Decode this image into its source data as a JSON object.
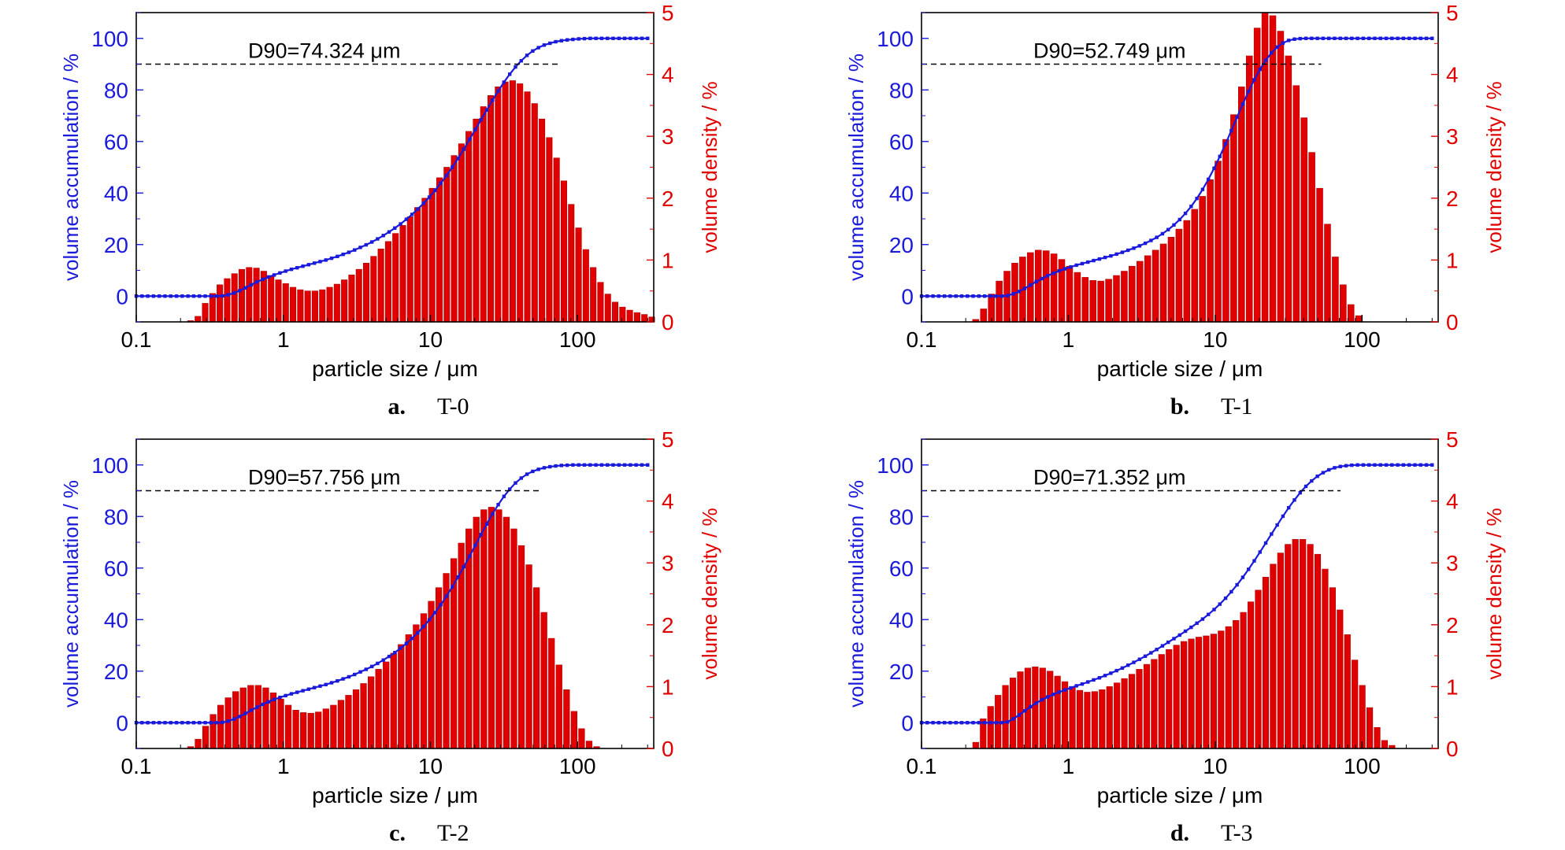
{
  "colors": {
    "accumulation": "#1a1adb",
    "density": "#e00000",
    "density_edge": "#b00000",
    "axis": "#000000",
    "reference_line": "#000000"
  },
  "chart_data": [
    {
      "type": "bar",
      "caption_letter": "a.",
      "caption_name": "T-0",
      "annotation": "D90=74.324 μm",
      "xlabel": "particle size / μm",
      "ylabel_left": "volume accumulation / %",
      "ylabel_right": "volume density / %",
      "x_scale": "log",
      "xlim": [
        0.1,
        330
      ],
      "ylim_left": [
        -10,
        110
      ],
      "ylim_right": [
        0,
        5
      ],
      "xticks": [
        {
          "v": 0.1,
          "label": "0.1"
        },
        {
          "v": 1,
          "label": "1"
        },
        {
          "v": 10,
          "label": "10"
        },
        {
          "v": 100,
          "label": "100"
        }
      ],
      "yticks_left": [
        {
          "v": 0,
          "label": "0"
        },
        {
          "v": 20,
          "label": "20"
        },
        {
          "v": 40,
          "label": "40"
        },
        {
          "v": 60,
          "label": "60"
        },
        {
          "v": 80,
          "label": "80"
        },
        {
          "v": 100,
          "label": "100"
        }
      ],
      "yticks_right": [
        {
          "v": 0,
          "label": "0"
        },
        {
          "v": 1,
          "label": "1"
        },
        {
          "v": 2,
          "label": "2"
        },
        {
          "v": 3,
          "label": "3"
        },
        {
          "v": 4,
          "label": "4"
        },
        {
          "v": 5,
          "label": "5"
        }
      ],
      "reference_line": {
        "y": 90,
        "x_start": 0.1,
        "x_end": 74.324
      },
      "density": {
        "x_min": 0.234,
        "x_max": 320,
        "k": 64,
        "values": [
          0.02,
          0.09,
          0.3,
          0.46,
          0.6,
          0.7,
          0.78,
          0.85,
          0.88,
          0.87,
          0.82,
          0.75,
          0.68,
          0.62,
          0.56,
          0.52,
          0.5,
          0.5,
          0.52,
          0.56,
          0.61,
          0.68,
          0.76,
          0.85,
          0.95,
          1.06,
          1.18,
          1.3,
          1.43,
          1.56,
          1.7,
          1.85,
          2.0,
          2.16,
          2.33,
          2.5,
          2.69,
          2.88,
          3.08,
          3.28,
          3.48,
          3.66,
          3.8,
          3.88,
          3.9,
          3.85,
          3.72,
          3.53,
          3.28,
          2.98,
          2.65,
          2.28,
          1.9,
          1.52,
          1.17,
          0.88,
          0.64,
          0.45,
          0.32,
          0.24,
          0.19,
          0.15,
          0.12,
          0.08
        ]
      },
      "accumulation": {
        "x_start": 0.1,
        "x_end": 300,
        "k": 90,
        "values": [
          0,
          0,
          0,
          0,
          0,
          0,
          0,
          0,
          0,
          0,
          0,
          0,
          0,
          0,
          0,
          0.1,
          0.5,
          1.2,
          2.1,
          3.2,
          4.4,
          5.5,
          6.5,
          7.4,
          8.2,
          9.0,
          9.7,
          10.4,
          11.0,
          11.6,
          12.2,
          12.8,
          13.4,
          14.0,
          14.7,
          15.4,
          16.2,
          17.0,
          17.9,
          18.9,
          19.9,
          21.0,
          22.2,
          23.5,
          24.9,
          26.4,
          28.0,
          29.8,
          31.7,
          33.8,
          36.0,
          38.4,
          41.0,
          43.8,
          46.8,
          50.0,
          53.4,
          57.0,
          60.8,
          64.6,
          68.4,
          72.2,
          76.0,
          79.6,
          83.0,
          86.1,
          88.9,
          91.3,
          93.4,
          95.1,
          96.4,
          97.4,
          98.1,
          98.7,
          99.1,
          99.4,
          99.6,
          99.8,
          99.9,
          100,
          100,
          100,
          100,
          100,
          100,
          100,
          100,
          100,
          100,
          100
        ]
      }
    },
    {
      "type": "bar",
      "caption_letter": "b.",
      "caption_name": "T-1",
      "annotation": "D90=52.749 μm",
      "xlabel": "particle size / μm",
      "ylabel_left": "volume accumulation / %",
      "ylabel_right": "volume density / %",
      "x_scale": "log",
      "xlim": [
        0.1,
        330
      ],
      "ylim_left": [
        -10,
        110
      ],
      "ylim_right": [
        0,
        5
      ],
      "xticks": [
        {
          "v": 0.1,
          "label": "0.1"
        },
        {
          "v": 1,
          "label": "1"
        },
        {
          "v": 10,
          "label": "10"
        },
        {
          "v": 100,
          "label": "100"
        }
      ],
      "yticks_left": [
        {
          "v": 0,
          "label": "0"
        },
        {
          "v": 20,
          "label": "20"
        },
        {
          "v": 40,
          "label": "40"
        },
        {
          "v": 60,
          "label": "60"
        },
        {
          "v": 80,
          "label": "80"
        },
        {
          "v": 100,
          "label": "100"
        }
      ],
      "yticks_right": [
        {
          "v": 0,
          "label": "0"
        },
        {
          "v": 1,
          "label": "1"
        },
        {
          "v": 2,
          "label": "2"
        },
        {
          "v": 3,
          "label": "3"
        },
        {
          "v": 4,
          "label": "4"
        },
        {
          "v": 5,
          "label": "5"
        }
      ],
      "reference_line": {
        "y": 90,
        "x_start": 0.1,
        "x_end": 52.749
      },
      "density": {
        "x_min": 0.234,
        "x_max": 95,
        "k": 50,
        "values": [
          0.04,
          0.21,
          0.45,
          0.66,
          0.82,
          0.95,
          1.05,
          1.12,
          1.16,
          1.15,
          1.1,
          1.01,
          0.9,
          0.8,
          0.72,
          0.67,
          0.66,
          0.69,
          0.75,
          0.82,
          0.9,
          0.98,
          1.07,
          1.16,
          1.26,
          1.37,
          1.5,
          1.64,
          1.82,
          2.03,
          2.3,
          2.6,
          2.95,
          3.35,
          3.8,
          4.3,
          4.75,
          5.0,
          4.95,
          4.7,
          4.3,
          3.82,
          3.3,
          2.74,
          2.16,
          1.58,
          1.05,
          0.6,
          0.28,
          0.1
        ]
      },
      "accumulation": {
        "x_start": 0.1,
        "x_end": 300,
        "k": 90,
        "values": [
          0,
          0,
          0,
          0,
          0,
          0,
          0,
          0,
          0,
          0,
          0,
          0,
          0,
          0,
          0,
          0.2,
          0.9,
          1.8,
          3.0,
          4.3,
          5.6,
          6.8,
          7.9,
          8.9,
          9.8,
          10.6,
          11.3,
          12.0,
          12.6,
          13.2,
          13.8,
          14.4,
          15.0,
          15.6,
          16.3,
          17.0,
          17.8,
          18.6,
          19.5,
          20.5,
          21.6,
          22.8,
          24.2,
          25.8,
          27.6,
          29.7,
          32.1,
          34.8,
          37.9,
          41.4,
          45.3,
          49.6,
          54.2,
          59.1,
          64.2,
          69.4,
          74.5,
          79.4,
          83.9,
          88.0,
          91.5,
          94.4,
          96.6,
          98.2,
          99.2,
          99.7,
          99.9,
          100,
          100,
          100,
          100,
          100,
          100,
          100,
          100,
          100,
          100,
          100,
          100,
          100,
          100,
          100,
          100,
          100,
          100,
          100,
          100,
          100,
          100,
          100
        ]
      }
    },
    {
      "type": "bar",
      "caption_letter": "c.",
      "caption_name": "T-2",
      "annotation": "D90=57.756 μm",
      "xlabel": "particle size / μm",
      "ylabel_left": "volume accumulation / %",
      "ylabel_right": "volume density / %",
      "x_scale": "log",
      "xlim": [
        0.1,
        330
      ],
      "ylim_left": [
        -10,
        110
      ],
      "ylim_right": [
        0,
        5
      ],
      "xticks": [
        {
          "v": 0.1,
          "label": "0.1"
        },
        {
          "v": 1,
          "label": "1"
        },
        {
          "v": 10,
          "label": "10"
        },
        {
          "v": 100,
          "label": "100"
        }
      ],
      "yticks_left": [
        {
          "v": 0,
          "label": "0"
        },
        {
          "v": 20,
          "label": "20"
        },
        {
          "v": 40,
          "label": "40"
        },
        {
          "v": 60,
          "label": "60"
        },
        {
          "v": 80,
          "label": "80"
        },
        {
          "v": 100,
          "label": "100"
        }
      ],
      "yticks_right": [
        {
          "v": 0,
          "label": "0"
        },
        {
          "v": 1,
          "label": "1"
        },
        {
          "v": 2,
          "label": "2"
        },
        {
          "v": 3,
          "label": "3"
        },
        {
          "v": 4,
          "label": "4"
        },
        {
          "v": 5,
          "label": "5"
        }
      ],
      "reference_line": {
        "y": 90,
        "x_start": 0.1,
        "x_end": 57.756
      },
      "density": {
        "x_min": 0.234,
        "x_max": 135,
        "k": 55,
        "values": [
          0.03,
          0.15,
          0.36,
          0.55,
          0.7,
          0.82,
          0.92,
          0.98,
          1.02,
          1.02,
          0.98,
          0.9,
          0.8,
          0.7,
          0.62,
          0.58,
          0.57,
          0.59,
          0.64,
          0.7,
          0.78,
          0.86,
          0.95,
          1.05,
          1.16,
          1.28,
          1.4,
          1.54,
          1.68,
          1.84,
          2.0,
          2.18,
          2.38,
          2.6,
          2.83,
          3.07,
          3.32,
          3.55,
          3.74,
          3.86,
          3.9,
          3.86,
          3.74,
          3.55,
          3.28,
          2.97,
          2.6,
          2.2,
          1.78,
          1.35,
          0.95,
          0.6,
          0.32,
          0.12,
          0.03
        ]
      },
      "accumulation": {
        "x_start": 0.1,
        "x_end": 300,
        "k": 90,
        "values": [
          0,
          0,
          0,
          0,
          0,
          0,
          0,
          0,
          0,
          0,
          0,
          0,
          0,
          0,
          0,
          0.1,
          0.6,
          1.4,
          2.4,
          3.6,
          4.8,
          6.0,
          7.1,
          8.1,
          9.0,
          9.8,
          10.5,
          11.2,
          11.8,
          12.4,
          13.0,
          13.6,
          14.2,
          14.8,
          15.5,
          16.2,
          17.0,
          17.8,
          18.7,
          19.7,
          20.7,
          21.8,
          23.0,
          24.3,
          25.7,
          27.2,
          28.9,
          30.7,
          32.7,
          34.9,
          37.3,
          39.9,
          42.7,
          45.8,
          49.1,
          52.7,
          56.5,
          60.5,
          64.6,
          68.8,
          73.0,
          77.1,
          81.0,
          84.6,
          87.8,
          90.6,
          93.0,
          94.9,
          96.4,
          97.5,
          98.3,
          98.9,
          99.3,
          99.6,
          99.8,
          99.9,
          100,
          100,
          100,
          100,
          100,
          100,
          100,
          100,
          100,
          100,
          100,
          100,
          100,
          100
        ]
      }
    },
    {
      "type": "bar",
      "caption_letter": "d.",
      "caption_name": "T-3",
      "annotation": "D90=71.352 μm",
      "xlabel": "particle size / μm",
      "ylabel_left": "volume accumulation / %",
      "ylabel_right": "volume density / %",
      "x_scale": "log",
      "xlim": [
        0.1,
        330
      ],
      "ylim_left": [
        -10,
        110
      ],
      "ylim_right": [
        0,
        5
      ],
      "xticks": [
        {
          "v": 0.1,
          "label": "0.1"
        },
        {
          "v": 1,
          "label": "1"
        },
        {
          "v": 10,
          "label": "10"
        },
        {
          "v": 100,
          "label": "100"
        }
      ],
      "yticks_left": [
        {
          "v": 0,
          "label": "0"
        },
        {
          "v": 20,
          "label": "20"
        },
        {
          "v": 40,
          "label": "40"
        },
        {
          "v": 60,
          "label": "60"
        },
        {
          "v": 80,
          "label": "80"
        },
        {
          "v": 100,
          "label": "100"
        }
      ],
      "yticks_right": [
        {
          "v": 0,
          "label": "0"
        },
        {
          "v": 1,
          "label": "1"
        },
        {
          "v": 2,
          "label": "2"
        },
        {
          "v": 3,
          "label": "3"
        },
        {
          "v": 4,
          "label": "4"
        },
        {
          "v": 5,
          "label": "5"
        }
      ],
      "reference_line": {
        "y": 90,
        "x_start": 0.1,
        "x_end": 71.352
      },
      "density": {
        "x_min": 0.234,
        "x_max": 160,
        "k": 57,
        "values": [
          0.1,
          0.48,
          0.68,
          0.86,
          1.02,
          1.14,
          1.24,
          1.3,
          1.32,
          1.3,
          1.25,
          1.17,
          1.08,
          1.0,
          0.94,
          0.91,
          0.92,
          0.95,
          1.0,
          1.06,
          1.13,
          1.2,
          1.28,
          1.36,
          1.44,
          1.52,
          1.6,
          1.67,
          1.73,
          1.77,
          1.8,
          1.82,
          1.85,
          1.9,
          1.97,
          2.07,
          2.2,
          2.37,
          2.56,
          2.77,
          2.98,
          3.16,
          3.3,
          3.38,
          3.38,
          3.3,
          3.14,
          2.9,
          2.6,
          2.24,
          1.84,
          1.43,
          1.02,
          0.66,
          0.34,
          0.13,
          0.05
        ]
      },
      "accumulation": {
        "x_start": 0.1,
        "x_end": 300,
        "k": 90,
        "values": [
          0,
          0,
          0,
          0,
          0,
          0,
          0,
          0,
          0,
          0,
          0,
          0,
          0,
          0,
          0,
          0.3,
          1.5,
          3.0,
          4.6,
          6.2,
          7.6,
          8.9,
          10.0,
          11.0,
          11.9,
          12.7,
          13.5,
          14.3,
          15.0,
          15.8,
          16.6,
          17.4,
          18.3,
          19.2,
          20.2,
          21.2,
          22.3,
          23.4,
          24.6,
          25.8,
          27.1,
          28.4,
          29.8,
          31.2,
          32.6,
          34.0,
          35.5,
          37.0,
          38.6,
          40.2,
          42.0,
          43.9,
          46.0,
          48.3,
          50.8,
          53.5,
          56.4,
          59.5,
          62.8,
          66.2,
          69.7,
          73.2,
          76.7,
          80.1,
          83.4,
          86.4,
          89.2,
          91.7,
          93.8,
          95.6,
          97.0,
          98.1,
          98.9,
          99.4,
          99.7,
          99.9,
          100,
          100,
          100,
          100,
          100,
          100,
          100,
          100,
          100,
          100,
          100,
          100,
          100,
          100
        ]
      }
    }
  ]
}
